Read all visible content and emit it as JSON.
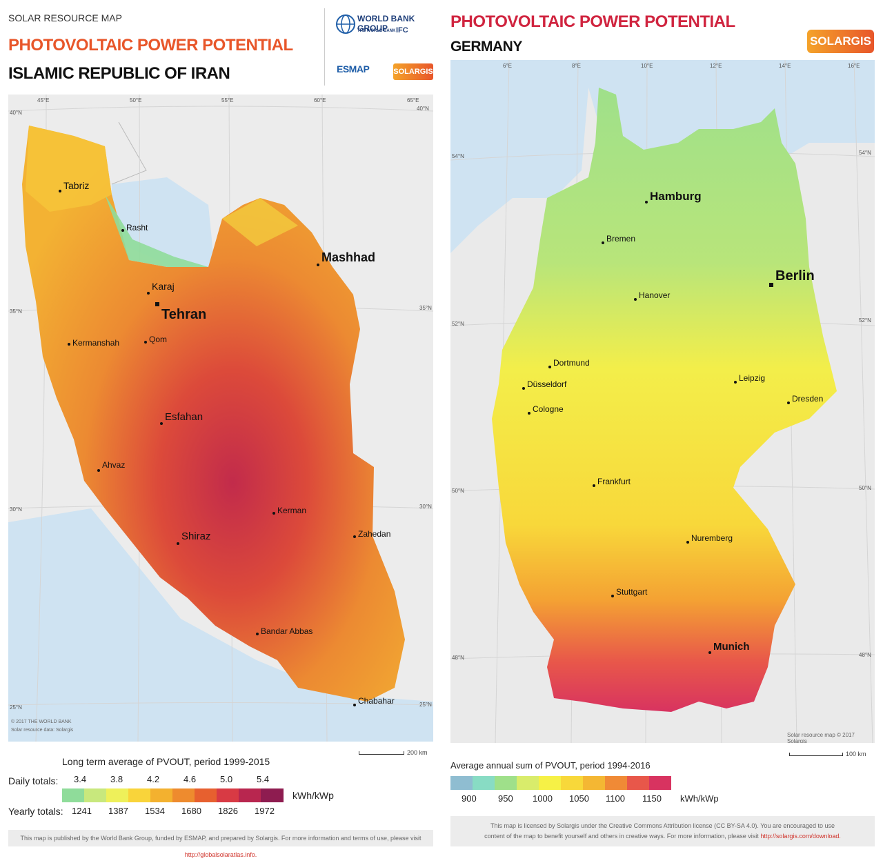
{
  "left": {
    "header_small": "SOLAR RESOURCE MAP",
    "title": "PHOTOVOLTAIC POWER POTENTIAL",
    "country": "ISLAMIC REPUBLIC OF IRAN",
    "logos": {
      "wbg": "WORLD BANK GROUP",
      "wb": "THE WORLD BANK",
      "ifc": "IFC",
      "esmap": "ESMAP",
      "solargis": "SOLARGIS"
    },
    "map": {
      "lon_labels": [
        "45°E",
        "50°E",
        "55°E",
        "60°E",
        "65°E"
      ],
      "lat_labels": [
        "40°N",
        "35°N",
        "30°N",
        "25°N"
      ],
      "copyright": "© 2017 THE WORLD BANK",
      "data_credit": "Solar resource data: Solargis",
      "cities": {
        "tabriz": "Tabriz",
        "rasht": "Rasht",
        "mashhad": "Mashhad",
        "karaj": "Karaj",
        "tehran": "Tehran",
        "kermanshah": "Kermanshah",
        "qom": "Qom",
        "esfahan": "Esfahan",
        "ahvaz": "Ahvaz",
        "kerman": "Kerman",
        "shiraz": "Shiraz",
        "zahedan": "Zahedan",
        "bandar_abbas": "Bandar Abbas",
        "chabahar": "Chabahar"
      }
    },
    "scale": "200 km",
    "legend": {
      "title": "Long term average of PVOUT, period 1999-2015",
      "daily_label": "Daily totals:",
      "yearly_label": "Yearly totals:",
      "unit": "kWh/kWp",
      "daily_values": [
        "3.4",
        "3.8",
        "4.2",
        "4.6",
        "5.0",
        "5.4"
      ],
      "yearly_values": [
        "1241",
        "1387",
        "1534",
        "1680",
        "1826",
        "1972"
      ],
      "colors": [
        "#8fdc9a",
        "#c8e87d",
        "#eef05a",
        "#f9d43a",
        "#f3b12f",
        "#ee8b2e",
        "#e7602f",
        "#d83a44",
        "#b8264f",
        "#8e1c50"
      ]
    },
    "footer": {
      "text": "This map is published by the World Bank Group, funded by ESMAP, and prepared by Solargis. For more information and terms of use, please visit ",
      "link": "http://globalsolaratlas.info."
    }
  },
  "right": {
    "title": "PHOTOVOLTAIC POWER POTENTIAL",
    "country": "GERMANY",
    "logo": "SOLARGIS",
    "map": {
      "lon_labels": [
        "6°E",
        "8°E",
        "10°E",
        "12°E",
        "14°E",
        "16°E"
      ],
      "lat_labels": [
        "54°N",
        "52°N",
        "50°N",
        "48°N"
      ],
      "credit": "Solar resource map © 2017 Solargis",
      "cities": {
        "hamburg": "Hamburg",
        "bremen": "Bremen",
        "berlin": "Berlin",
        "hanover": "Hanover",
        "dortmund": "Dortmund",
        "dusseldorf": "Düsseldorf",
        "cologne": "Cologne",
        "leipzig": "Leipzig",
        "dresden": "Dresden",
        "frankfurt": "Frankfurt",
        "nuremberg": "Nuremberg",
        "stuttgart": "Stuttgart",
        "munich": "Munich"
      }
    },
    "scale": "100 km",
    "legend": {
      "title": "Average annual sum of PVOUT, period 1994-2016",
      "unit": "kWh/kWp",
      "values": [
        "900",
        "950",
        "1000",
        "1050",
        "1100",
        "1150"
      ],
      "colors": [
        "#8fbdd1",
        "#88dcc4",
        "#9fe08a",
        "#d9ec6b",
        "#f6f146",
        "#f8d83a",
        "#f4b733",
        "#f08a36",
        "#e8574a",
        "#d83360"
      ]
    },
    "footer": {
      "line1": "This map is licensed by Solargis under the Creative Commons Attribution license (CC BY-SA 4.0). You are encouraged to use",
      "line2": "content of the map to benefit yourself and others in creative ways. For more information, please visit ",
      "link": "http://solargis.com/download."
    }
  },
  "colors": {
    "title_orange": "#e8562a",
    "title_red": "#d0243f",
    "link_red": "#d0332b",
    "sea": "#cfe3f2",
    "land_bg": "#eeeeee"
  }
}
